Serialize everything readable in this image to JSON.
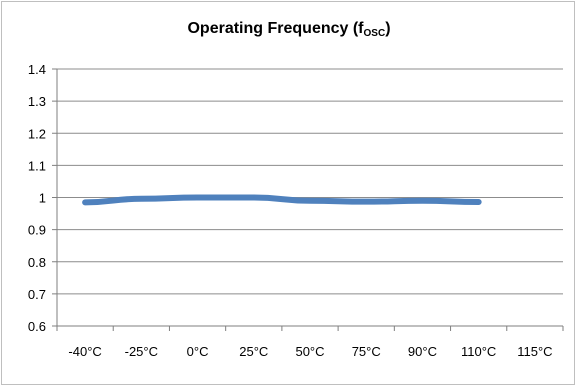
{
  "chart_data": {
    "type": "line",
    "title": "Operating Frequency (f",
    "title_subscript": "OSC",
    "title_suffix": ")",
    "categories": [
      "-40°C",
      "-25°C",
      "0°C",
      "25°C",
      "50°C",
      "75°C",
      "90°C",
      "110°C",
      "115°C"
    ],
    "series": [
      {
        "values": [
          0.985,
          0.996,
          1.0,
          1.0,
          0.99,
          0.987,
          0.99,
          0.986,
          null
        ]
      }
    ],
    "y_ticks": [
      "0.6",
      "0.7",
      "0.8",
      "0.9",
      "1",
      "1.1",
      "1.2",
      "1.3",
      "1.4"
    ],
    "ylim": [
      0.6,
      1.4
    ],
    "grid": true,
    "legend": "none",
    "colors": {
      "series": "#4f81bd",
      "grid": "#8c8c8c",
      "axis": "#7f7f7f"
    }
  }
}
